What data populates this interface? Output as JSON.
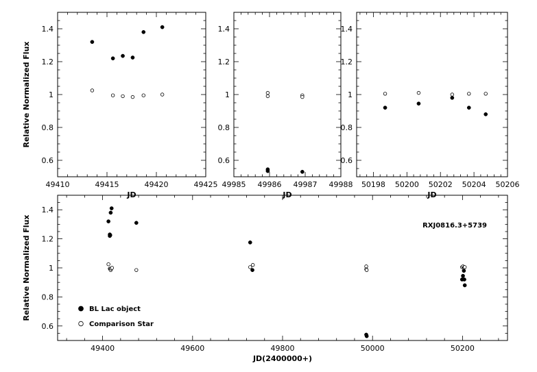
{
  "chart_data": [
    {
      "type": "scatter",
      "panel": "top-left",
      "xlabel": "JD",
      "ylabel": "Relative Normalized Flux",
      "xlim": [
        49410,
        49425
      ],
      "ylim": [
        0.5,
        1.5
      ],
      "xticks": [
        49410,
        49415,
        49420,
        49425
      ],
      "yticks": [
        0.6,
        0.8,
        1,
        1.2,
        1.4
      ],
      "series": [
        {
          "marker": "filled-circle",
          "points": [
            [
              49413.5,
              1.32
            ],
            [
              49415.6,
              1.22
            ],
            [
              49416.6,
              1.235
            ],
            [
              49417.6,
              1.225
            ],
            [
              49418.7,
              1.38
            ],
            [
              49420.6,
              1.41
            ]
          ]
        },
        {
          "marker": "open-circle",
          "points": [
            [
              49413.5,
              1.025
            ],
            [
              49415.6,
              0.995
            ],
            [
              49416.6,
              0.99
            ],
            [
              49417.6,
              0.985
            ],
            [
              49418.7,
              0.995
            ],
            [
              49420.6,
              1.0
            ]
          ]
        }
      ]
    },
    {
      "type": "scatter",
      "panel": "top-middle",
      "xlabel": "JD",
      "ylabel": "",
      "xlim": [
        49985,
        49988
      ],
      "ylim": [
        0.5,
        1.5
      ],
      "xticks": [
        49985,
        49986,
        49987,
        49988
      ],
      "yticks": [
        0.6,
        0.8,
        1,
        1.2,
        1.4
      ],
      "series": [
        {
          "marker": "filled-circle",
          "points": [
            [
              49985.95,
              0.535
            ],
            [
              49985.95,
              0.545
            ],
            [
              49986.92,
              0.53
            ]
          ]
        },
        {
          "marker": "open-circle",
          "points": [
            [
              49985.95,
              1.01
            ],
            [
              49985.95,
              0.99
            ],
            [
              49986.92,
              0.995
            ],
            [
              49986.92,
              0.985
            ]
          ]
        }
      ]
    },
    {
      "type": "scatter",
      "panel": "top-right",
      "xlabel": "JD",
      "ylabel": "",
      "xlim": [
        50197,
        50206
      ],
      "ylim": [
        0.5,
        1.5
      ],
      "xticks": [
        50198,
        50200,
        50202,
        50204,
        50206
      ],
      "yticks": [
        0.6,
        0.8,
        1,
        1.2,
        1.4
      ],
      "series": [
        {
          "marker": "filled-circle",
          "points": [
            [
              50198.7,
              0.92
            ],
            [
              50200.7,
              0.945
            ],
            [
              50202.7,
              0.98
            ],
            [
              50203.7,
              0.92
            ],
            [
              50204.7,
              0.88
            ]
          ]
        },
        {
          "marker": "open-circle",
          "points": [
            [
              50198.7,
              1.005
            ],
            [
              50200.7,
              1.01
            ],
            [
              50202.7,
              1.0
            ],
            [
              50203.7,
              1.005
            ],
            [
              50204.7,
              1.005
            ]
          ]
        }
      ]
    },
    {
      "type": "scatter",
      "panel": "bottom",
      "xlabel": "JD(2400000+)",
      "ylabel": "Relative Normalized Flux",
      "xlim": [
        49300,
        50300
      ],
      "ylim": [
        0.5,
        1.5
      ],
      "xticks": [
        49400,
        49600,
        49800,
        50000,
        50200
      ],
      "yticks": [
        0.6,
        0.8,
        1,
        1.2,
        1.4
      ],
      "annotation": "RXJ0816.3+5739",
      "legend_position": "bottom-left",
      "series": [
        {
          "name": "BL Lac object",
          "marker": "filled-circle",
          "points": [
            [
              49413,
              1.32
            ],
            [
              49416,
              1.22
            ],
            [
              49416,
              1.23
            ],
            [
              49417,
              1.225
            ],
            [
              49418,
              1.38
            ],
            [
              49420,
              1.41
            ],
            [
              49475,
              1.31
            ],
            [
              49728,
              1.175
            ],
            [
              49733,
              0.985
            ],
            [
              49986,
              0.54
            ],
            [
              49987,
              0.53
            ],
            [
              50199,
              0.92
            ],
            [
              50201,
              0.945
            ],
            [
              50203,
              0.98
            ],
            [
              50204,
              0.92
            ],
            [
              50205,
              0.88
            ]
          ]
        },
        {
          "name": "Comparison Star",
          "marker": "open-circle",
          "points": [
            [
              49413,
              1.025
            ],
            [
              49416,
              0.995
            ],
            [
              49417,
              0.99
            ],
            [
              49418,
              0.985
            ],
            [
              49419,
              0.995
            ],
            [
              49421,
              1.0
            ],
            [
              49475,
              0.985
            ],
            [
              49728,
              1.005
            ],
            [
              49734,
              1.02
            ],
            [
              49986,
              1.01
            ],
            [
              49986,
              0.99
            ],
            [
              49987,
              0.985
            ],
            [
              50199,
              1.005
            ],
            [
              50201,
              1.01
            ],
            [
              50203,
              1.0
            ],
            [
              50204,
              1.005
            ],
            [
              50205,
              1.005
            ]
          ]
        }
      ]
    }
  ]
}
